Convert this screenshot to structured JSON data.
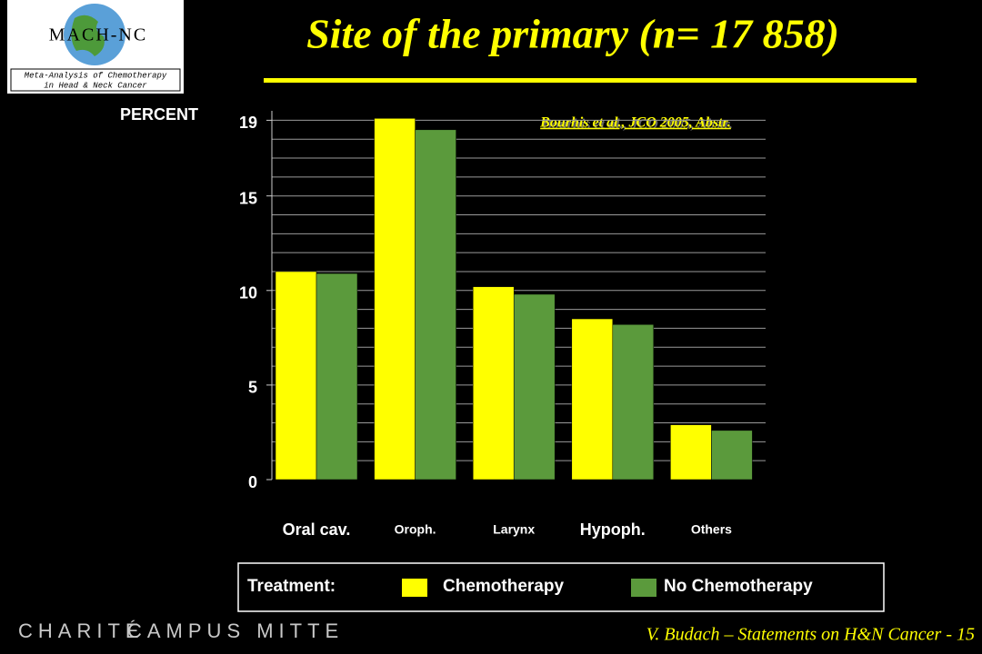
{
  "logo": {
    "name": "MACH-NC",
    "line1": "Meta-Analysis of Chemotherapy",
    "line2": "in Head & Neck Cancer"
  },
  "footer": {
    "brand1": "CHARITÉ",
    "brand2": "CAMPUS MITTE",
    "credit": "V. Budach – Statements on H&N Cancer - 15"
  },
  "chart_data": {
    "type": "bar",
    "title": "Site of the primary (n= 17 858)",
    "y_label": "PERCENT",
    "annotation": "Bourhis et al., JCO 2005, Abstr.",
    "legend_title": "Treatment:",
    "categories": [
      "Oral cav.",
      "Oroph.",
      "Larynx",
      "Hypoph.",
      "Others"
    ],
    "series": [
      {
        "name": "Chemotherapy",
        "color": "#ffff00",
        "values": [
          11.0,
          19.1,
          10.2,
          8.5,
          2.9
        ]
      },
      {
        "name": "No Chemotherapy",
        "color": "#5b9a3c",
        "values": [
          10.9,
          18.5,
          9.8,
          8.2,
          2.6
        ]
      }
    ],
    "ylim": [
      0,
      19.5
    ],
    "yticks": [
      0,
      5,
      10,
      15,
      19
    ],
    "minor_yticks": [
      1,
      2,
      3,
      4,
      5,
      6,
      7,
      8,
      9,
      10,
      11,
      12,
      13,
      14,
      15,
      16,
      17,
      18,
      19
    ],
    "grid": true
  }
}
